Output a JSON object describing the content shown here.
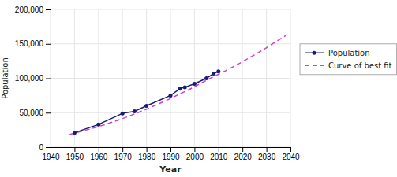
{
  "chart_data": {
    "type": "line",
    "xlabel": "Year",
    "ylabel": "Population",
    "series": [
      {
        "name": "Population",
        "color": "#1a1a7a",
        "marker": "circle",
        "line_style": "solid",
        "x": [
          1950,
          1960,
          1970,
          1975,
          1980,
          1990,
          1994,
          1996,
          2000,
          2005,
          2008,
          2010
        ],
        "values": [
          21000,
          33000,
          49000,
          52000,
          60000,
          75000,
          85000,
          87000,
          92000,
          100000,
          107000,
          110000
        ]
      },
      {
        "name": "Curve of best fit",
        "color": "#cc44cc",
        "line_style": "dashed",
        "x": [
          1948,
          1955,
          1963,
          1972,
          1980,
          1989,
          1998,
          2006,
          2013,
          2020,
          2028,
          2038
        ],
        "values": [
          18500,
          25000,
          33000,
          44000,
          55000,
          69000,
          84000,
          99000,
          111000,
          124000,
          140000,
          162000
        ]
      }
    ],
    "xlim": [
      1940,
      2040
    ],
    "ylim": [
      0,
      200000
    ],
    "xticks": [
      1940,
      1950,
      1960,
      1970,
      1980,
      1990,
      2000,
      2010,
      2020,
      2030,
      2040
    ],
    "yticks": [
      0,
      {
        "value": 50000,
        "label": "50,000"
      },
      {
        "value": 100000,
        "label": "100,000"
      },
      {
        "value": 150000,
        "label": "150,000"
      },
      {
        "value": 200000,
        "label": "200,000"
      }
    ],
    "grid": true,
    "legend": "right"
  }
}
